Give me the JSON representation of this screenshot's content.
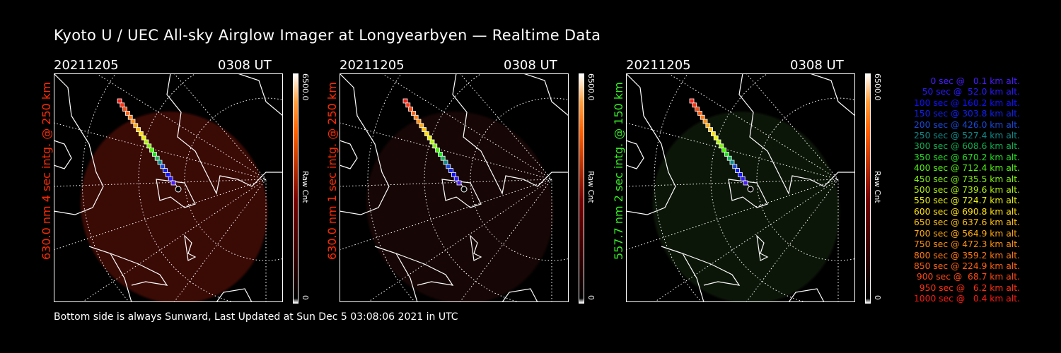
{
  "title": "Kyoto U / UEC All-sky Airglow Imager at Longyearbyen — Realtime Data",
  "footer": "Bottom side is always Sunward, Last Updated at Sun Dec  5 03:08:06 2021 in UTC",
  "panels": [
    {
      "date": "20211205",
      "time": "0308 UT",
      "side_label": "630.0 nm 4 sec intg. @ 250 km",
      "label_color": "#ff2a00",
      "cbar_max": "6500.0",
      "cbar_min": "0",
      "cbar_unit": "Raw Cnt",
      "glow": "#3a0a05"
    },
    {
      "date": "20211205",
      "time": "0308 UT",
      "side_label": "630.0 nm 1 sec intg. @ 250 km",
      "label_color": "#ff2a00",
      "cbar_max": "6500.0",
      "cbar_min": "0",
      "cbar_unit": "Raw Cnt",
      "glow": "#160605"
    },
    {
      "date": "20211205",
      "time": "0308 UT",
      "side_label": "557.7 nm 2 sec intg. @ 150 km",
      "label_color": "#33ee22",
      "cbar_max": "6500.0",
      "cbar_min": "0",
      "cbar_unit": "Raw Cnt",
      "glow": "#0c1608"
    }
  ],
  "legend": [
    {
      "text": "0 sec @   0.1 km alt.",
      "color": "#4a1cff"
    },
    {
      "text": "50 sec @  52.0 km alt.",
      "color": "#2a18ff"
    },
    {
      "text": "100 sec @ 160.2 km alt.",
      "color": "#1010ff"
    },
    {
      "text": "150 sec @ 303.8 km alt.",
      "color": "#1020f0"
    },
    {
      "text": "200 sec @ 426.0 km alt.",
      "color": "#1848d8"
    },
    {
      "text": "250 sec @ 527.4 km alt.",
      "color": "#108888"
    },
    {
      "text": "300 sec @ 608.6 km alt.",
      "color": "#10b050"
    },
    {
      "text": "350 sec @ 670.2 km alt.",
      "color": "#20e020"
    },
    {
      "text": "400 sec @ 712.4 km alt.",
      "color": "#50f010"
    },
    {
      "text": "450 sec @ 735.5 km alt.",
      "color": "#80f010"
    },
    {
      "text": "500 sec @ 739.6 km alt.",
      "color": "#b0f010"
    },
    {
      "text": "550 sec @ 724.7 km alt.",
      "color": "#e8f010"
    },
    {
      "text": "600 sec @ 690.8 km alt.",
      "color": "#ffe010"
    },
    {
      "text": "650 sec @ 637.6 km alt.",
      "color": "#ffc010"
    },
    {
      "text": "700 sec @ 564.9 km alt.",
      "color": "#ffa810"
    },
    {
      "text": "750 sec @ 472.3 km alt.",
      "color": "#ff9010"
    },
    {
      "text": "800 sec @ 359.2 km alt.",
      "color": "#ff7810"
    },
    {
      "text": "850 sec @ 224.9 km alt.",
      "color": "#ff6010"
    },
    {
      "text": "900 sec @  68.7 km alt.",
      "color": "#ff4810"
    },
    {
      "text": "950 sec @   6.2 km alt.",
      "color": "#ff3010"
    },
    {
      "text": "1000 sec @   0.4 km alt.",
      "color": "#ff1a10"
    }
  ]
}
